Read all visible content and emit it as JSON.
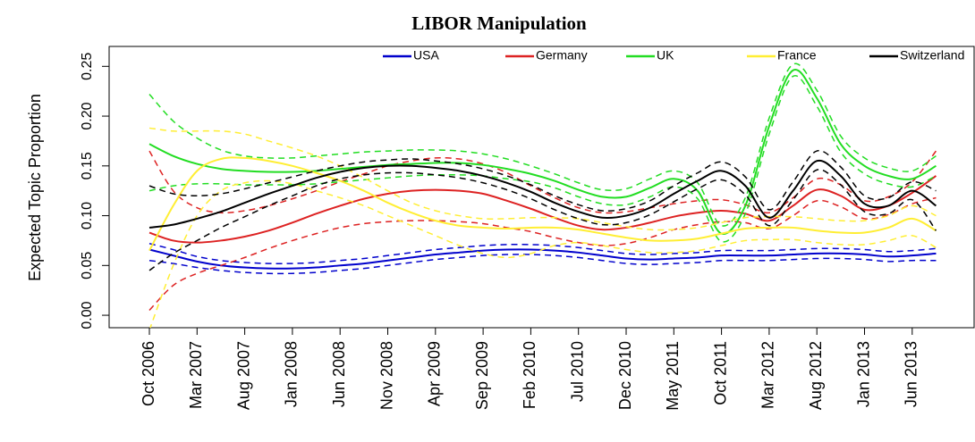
{
  "chart_data": {
    "type": "line",
    "title": "LIBOR Manipulation",
    "y_label": "Expected Topic Proportion",
    "legend": "top",
    "categories": [
      "Oct 2006",
      null,
      "Mar 2007",
      null,
      "Aug 2007",
      null,
      "Jan 2008",
      null,
      "Jun 2008",
      null,
      "Nov 2008",
      null,
      "Apr 2009",
      null,
      "Sep 2009",
      null,
      "Feb 2010",
      null,
      "Jul 2010",
      null,
      "Dec 2010",
      null,
      "May 2011",
      null,
      "Oct 2011",
      null,
      "Mar 2012",
      null,
      "Aug 2012",
      null,
      "Jan 2013",
      null,
      "Jun 2013",
      null
    ],
    "ylim": [
      -0.0125,
      0.27
    ],
    "yticks": [
      {
        "value": 0,
        "label": "0.00"
      },
      0.05,
      {
        "value": 0.1,
        "label": "0.10"
      },
      0.15,
      {
        "value": 0.2,
        "label": "0.20"
      },
      0.25
    ],
    "series": [
      {
        "name": "USA",
        "color": "#0000cc",
        "values": [
          0.066,
          0.06,
          0.054,
          0.05,
          0.048,
          0.047,
          0.047,
          0.048,
          0.05,
          0.052,
          0.055,
          0.058,
          0.061,
          0.063,
          0.065,
          0.066,
          0.066,
          0.065,
          0.063,
          0.06,
          0.057,
          0.056,
          0.057,
          0.058,
          0.06,
          0.06,
          0.06,
          0.061,
          0.062,
          0.062,
          0.061,
          0.059,
          0.06,
          0.062
        ],
        "upper": [
          0.072,
          0.066,
          0.059,
          0.055,
          0.053,
          0.052,
          0.052,
          0.053,
          0.055,
          0.057,
          0.06,
          0.063,
          0.066,
          0.068,
          0.07,
          0.071,
          0.071,
          0.07,
          0.068,
          0.065,
          0.062,
          0.061,
          0.062,
          0.063,
          0.065,
          0.065,
          0.065,
          0.066,
          0.067,
          0.067,
          0.066,
          0.064,
          0.065,
          0.067
        ],
        "lower": [
          0.055,
          0.052,
          0.048,
          0.045,
          0.043,
          0.042,
          0.042,
          0.043,
          0.045,
          0.047,
          0.05,
          0.053,
          0.056,
          0.058,
          0.06,
          0.061,
          0.061,
          0.06,
          0.058,
          0.055,
          0.052,
          0.051,
          0.052,
          0.053,
          0.055,
          0.055,
          0.055,
          0.056,
          0.057,
          0.057,
          0.056,
          0.054,
          0.055,
          0.055
        ]
      },
      {
        "name": "Germany",
        "color": "#dd2222",
        "values": [
          0.083,
          0.075,
          0.073,
          0.075,
          0.079,
          0.085,
          0.093,
          0.102,
          0.11,
          0.117,
          0.122,
          0.125,
          0.126,
          0.125,
          0.122,
          0.115,
          0.107,
          0.098,
          0.09,
          0.086,
          0.088,
          0.093,
          0.099,
          0.103,
          0.105,
          0.102,
          0.095,
          0.11,
          0.126,
          0.12,
          0.106,
          0.11,
          0.123,
          0.14
        ],
        "upper": [
          0.165,
          0.125,
          0.108,
          0.103,
          0.105,
          0.11,
          0.117,
          0.125,
          0.134,
          0.142,
          0.15,
          0.155,
          0.158,
          0.157,
          0.152,
          0.143,
          0.13,
          0.118,
          0.108,
          0.103,
          0.104,
          0.108,
          0.112,
          0.115,
          0.116,
          0.111,
          0.103,
          0.118,
          0.137,
          0.131,
          0.115,
          0.119,
          0.134,
          0.165
        ],
        "lower": [
          0.005,
          0.03,
          0.042,
          0.05,
          0.058,
          0.067,
          0.075,
          0.082,
          0.088,
          0.092,
          0.094,
          0.095,
          0.095,
          0.094,
          0.092,
          0.088,
          0.084,
          0.078,
          0.073,
          0.07,
          0.072,
          0.078,
          0.086,
          0.091,
          0.094,
          0.093,
          0.087,
          0.1,
          0.115,
          0.109,
          0.097,
          0.101,
          0.112,
          0.118
        ]
      },
      {
        "name": "UK",
        "color": "#22dd22",
        "values": [
          0.172,
          0.16,
          0.152,
          0.147,
          0.145,
          0.144,
          0.144,
          0.145,
          0.147,
          0.149,
          0.151,
          0.152,
          0.153,
          0.153,
          0.151,
          0.147,
          0.142,
          0.135,
          0.126,
          0.119,
          0.119,
          0.128,
          0.137,
          0.125,
          0.082,
          0.11,
          0.19,
          0.246,
          0.218,
          0.172,
          0.15,
          0.14,
          0.137,
          0.15
        ],
        "upper": [
          0.222,
          0.195,
          0.178,
          0.166,
          0.16,
          0.158,
          0.158,
          0.16,
          0.162,
          0.164,
          0.165,
          0.166,
          0.166,
          0.165,
          0.162,
          0.157,
          0.15,
          0.142,
          0.133,
          0.126,
          0.127,
          0.137,
          0.145,
          0.133,
          0.09,
          0.118,
          0.198,
          0.252,
          0.226,
          0.18,
          0.158,
          0.148,
          0.145,
          0.16
        ],
        "lower": [
          0.125,
          0.13,
          0.132,
          0.132,
          0.131,
          0.131,
          0.131,
          0.132,
          0.134,
          0.136,
          0.138,
          0.14,
          0.141,
          0.141,
          0.14,
          0.137,
          0.134,
          0.128,
          0.119,
          0.112,
          0.111,
          0.119,
          0.129,
          0.117,
          0.074,
          0.102,
          0.182,
          0.24,
          0.21,
          0.164,
          0.142,
          0.132,
          0.129,
          0.14
        ]
      },
      {
        "name": "France",
        "color": "#ffee33",
        "values": [
          0.065,
          0.11,
          0.145,
          0.157,
          0.158,
          0.155,
          0.15,
          0.143,
          0.135,
          0.125,
          0.113,
          0.103,
          0.095,
          0.09,
          0.088,
          0.087,
          0.088,
          0.088,
          0.086,
          0.082,
          0.078,
          0.075,
          0.075,
          0.077,
          0.082,
          0.087,
          0.088,
          0.088,
          0.085,
          0.083,
          0.083,
          0.088,
          0.097,
          0.085
        ],
        "upper": [
          0.188,
          0.185,
          0.185,
          0.185,
          0.182,
          0.175,
          0.168,
          0.16,
          0.15,
          0.138,
          0.125,
          0.113,
          0.105,
          0.1,
          0.097,
          0.097,
          0.098,
          0.098,
          0.097,
          0.093,
          0.089,
          0.086,
          0.086,
          0.088,
          0.093,
          0.098,
          0.099,
          0.099,
          0.097,
          0.095,
          0.095,
          0.1,
          0.11,
          0.1
        ],
        "lower": [
          -0.015,
          0.05,
          0.1,
          0.125,
          0.133,
          0.135,
          0.132,
          0.125,
          0.118,
          0.11,
          0.1,
          0.09,
          0.08,
          0.07,
          0.062,
          0.058,
          0.062,
          0.07,
          0.073,
          0.07,
          0.066,
          0.063,
          0.063,
          0.065,
          0.07,
          0.075,
          0.076,
          0.076,
          0.073,
          0.071,
          0.071,
          0.075,
          0.08,
          0.068
        ]
      },
      {
        "name": "Switzerland",
        "color": "#000000",
        "values": [
          0.088,
          0.091,
          0.097,
          0.104,
          0.113,
          0.122,
          0.13,
          0.138,
          0.144,
          0.148,
          0.15,
          0.15,
          0.148,
          0.145,
          0.14,
          0.133,
          0.124,
          0.113,
          0.104,
          0.098,
          0.1,
          0.108,
          0.122,
          0.135,
          0.145,
          0.13,
          0.098,
          0.125,
          0.155,
          0.14,
          0.112,
          0.11,
          0.125,
          0.11
        ],
        "upper": [
          0.13,
          0.122,
          0.12,
          0.122,
          0.127,
          0.133,
          0.139,
          0.145,
          0.15,
          0.154,
          0.156,
          0.157,
          0.155,
          0.152,
          0.147,
          0.14,
          0.131,
          0.12,
          0.111,
          0.105,
          0.107,
          0.115,
          0.13,
          0.143,
          0.154,
          0.139,
          0.106,
          0.134,
          0.165,
          0.149,
          0.12,
          0.118,
          0.134,
          0.125
        ],
        "lower": [
          0.045,
          0.062,
          0.075,
          0.088,
          0.099,
          0.11,
          0.12,
          0.13,
          0.137,
          0.141,
          0.143,
          0.143,
          0.141,
          0.138,
          0.133,
          0.126,
          0.117,
          0.106,
          0.097,
          0.091,
          0.093,
          0.101,
          0.114,
          0.127,
          0.136,
          0.121,
          0.09,
          0.116,
          0.146,
          0.131,
          0.104,
          0.102,
          0.116,
          0.085
        ]
      }
    ]
  }
}
